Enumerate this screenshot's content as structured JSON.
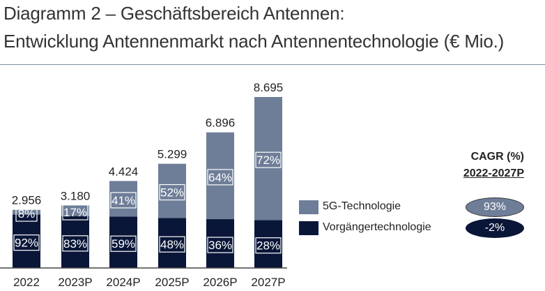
{
  "header": {
    "title_line1": "Diagramm 2 – Geschäftsbereich Antennen:",
    "title_line2": "Entwicklung Antennenmarkt nach Antennentechnologie (€ Mio.)"
  },
  "colors": {
    "fiveg": "#6e7e98",
    "legacy": "#0a1638",
    "label_box": "#ffffff"
  },
  "chart_data": {
    "type": "bar",
    "stacked": true,
    "categories": [
      "2022",
      "2023P",
      "2024P",
      "2025P",
      "2026P",
      "2027P"
    ],
    "totals": [
      2956,
      3180,
      4424,
      5299,
      6896,
      8695
    ],
    "total_labels": [
      "2.956",
      "3.180",
      "4.424",
      "5.299",
      "6.896",
      "8.695"
    ],
    "series": [
      {
        "name": "Vorgängertechnologie",
        "share_percent": [
          92,
          83,
          59,
          48,
          36,
          28
        ],
        "labels": [
          "92%",
          "83%",
          "59%",
          "48%",
          "36%",
          "28%"
        ]
      },
      {
        "name": "5G-Technologie",
        "share_percent": [
          8,
          17,
          41,
          52,
          64,
          72
        ],
        "labels": [
          "8%",
          "17%",
          "41%",
          "52%",
          "64%",
          "72%"
        ]
      }
    ],
    "ylim": [
      0,
      8695
    ],
    "grid": false,
    "legend_position": "right"
  },
  "legend": {
    "fiveg_label": "5G-Technologie",
    "legacy_label": "Vorgängertechnologie"
  },
  "cagr": {
    "title": "CAGR (%)",
    "period": "2022-2027P",
    "fiveg_value": "93%",
    "legacy_value": "-2%"
  }
}
